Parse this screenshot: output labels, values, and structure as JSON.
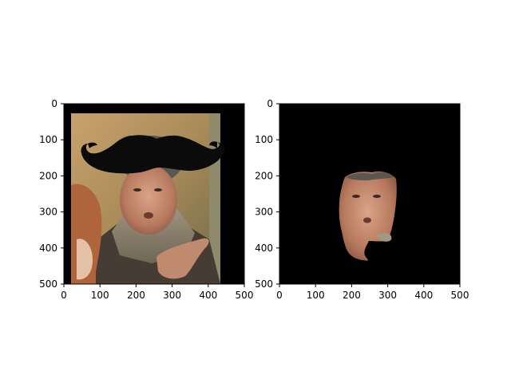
{
  "panels": [
    {
      "id": "left",
      "content": "image with a drawn mustache overlay",
      "x_ticks": [
        "0",
        "100",
        "200",
        "300",
        "400",
        "500"
      ],
      "y_ticks": [
        "0",
        "100",
        "200",
        "300",
        "400",
        "500"
      ],
      "xlim": [
        0,
        500
      ],
      "ylim": [
        500,
        0
      ]
    },
    {
      "id": "right",
      "content": "masked face crop on black background",
      "x_ticks": [
        "0",
        "100",
        "200",
        "300",
        "400",
        "500"
      ],
      "y_ticks": [
        "0",
        "100",
        "200",
        "300",
        "400",
        "500"
      ],
      "xlim": [
        0,
        500
      ],
      "ylim": [
        500,
        0
      ]
    }
  ],
  "colors": {
    "background": "#000000",
    "mustache": "#0b0b0b",
    "skin": "#c99378",
    "coat": "#4a4038",
    "scarf": "#8b806c",
    "bg_warm": "#b89660"
  }
}
